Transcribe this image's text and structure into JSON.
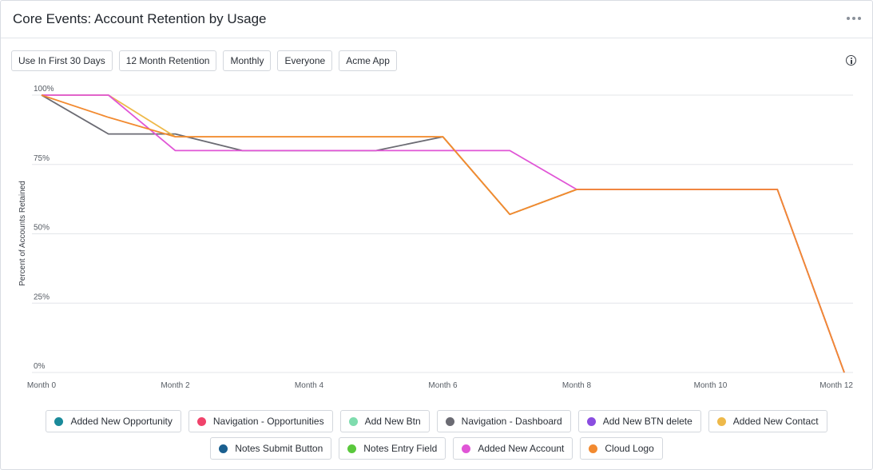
{
  "header": {
    "title": "Core Events: Account Retention by Usage"
  },
  "filters": [
    "Use In First 30 Days",
    "12 Month Retention",
    "Monthly",
    "Everyone",
    "Acme App"
  ],
  "icons": {
    "more": "more-horizontal-icon",
    "info": "info-icon"
  },
  "chart_data": {
    "type": "line",
    "title": "",
    "xlabel": "",
    "ylabel": "Percent of Accounts Retained",
    "x": [
      "Month 0",
      "Month 1",
      "Month 2",
      "Month 3",
      "Month 4",
      "Month 5",
      "Month 6",
      "Month 7",
      "Month 8",
      "Month 9",
      "Month 10",
      "Month 11",
      "Month 12"
    ],
    "x_tick_labels": [
      "Month 0",
      "Month 2",
      "Month 4",
      "Month 6",
      "Month 8",
      "Month 10",
      "Month 12"
    ],
    "y_tick_labels": [
      "100%",
      "75%",
      "50%",
      "25%",
      "0%"
    ],
    "ylim": [
      0,
      100
    ],
    "grid": true,
    "legend_placement": "bottom",
    "series": [
      {
        "name": "Added New Opportunity",
        "color": "#1a8a9a",
        "values": null
      },
      {
        "name": "Navigation - Opportunities",
        "color": "#f0436b",
        "values": null
      },
      {
        "name": "Add New Btn",
        "color": "#7fdcae",
        "values": null
      },
      {
        "name": "Navigation - Dashboard",
        "color": "#6b6b73",
        "values": [
          100,
          86,
          86,
          80,
          80,
          80,
          85,
          57,
          66,
          66,
          66,
          66,
          0
        ]
      },
      {
        "name": "Add New BTN delete",
        "color": "#8a4de0",
        "values": null
      },
      {
        "name": "Added New Contact",
        "color": "#eeb94a",
        "values": [
          100,
          100,
          85,
          85,
          85,
          85,
          85,
          57,
          66,
          66,
          66,
          66,
          0
        ]
      },
      {
        "name": "Notes Submit Button",
        "color": "#1a5f8f",
        "values": null
      },
      {
        "name": "Notes Entry Field",
        "color": "#5ac83c",
        "values": null
      },
      {
        "name": "Added New Account",
        "color": "#e055d6",
        "values": [
          100,
          100,
          80,
          80,
          80,
          80,
          80,
          80,
          66,
          66,
          66,
          66,
          0
        ]
      },
      {
        "name": "Cloud Logo",
        "color": "#f28a30",
        "values": [
          100,
          92,
          85,
          85,
          85,
          85,
          85,
          57,
          66,
          66,
          66,
          66,
          0
        ]
      }
    ]
  }
}
